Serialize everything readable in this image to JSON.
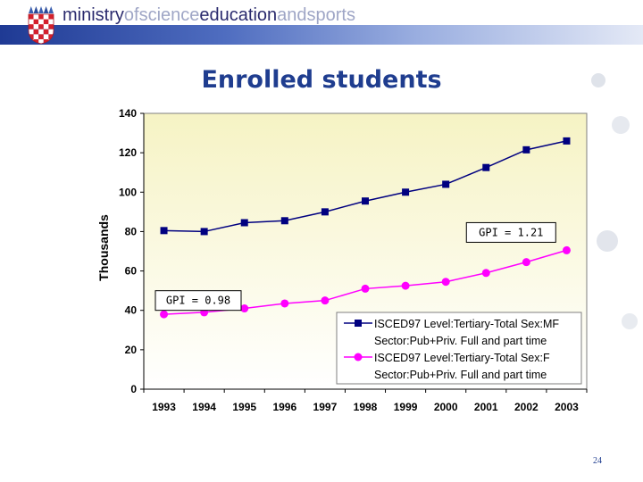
{
  "header": {
    "logo_parts": [
      "ministry",
      "ofscience",
      "education",
      "andsports"
    ]
  },
  "page": {
    "title": "Enrolled students",
    "page_number": "24"
  },
  "chart_data": {
    "type": "line",
    "title": "",
    "xlabel": "",
    "ylabel": "Thousands",
    "ylim": [
      0,
      140
    ],
    "yticks": [
      0,
      20,
      40,
      60,
      80,
      100,
      120,
      140
    ],
    "categories": [
      "1993",
      "1994",
      "1995",
      "1996",
      "1997",
      "1998",
      "1999",
      "2000",
      "2001",
      "2002",
      "2003"
    ],
    "grid": false,
    "legend_position": "bottom-right",
    "series": [
      {
        "name_line1": "ISCED97 Level:Tertiary-Total Sex:MF",
        "name_line2": "Sector:Pub+Priv. Full and part time",
        "color": "#000080",
        "marker": "square",
        "values": [
          80.5,
          80,
          84.5,
          85.5,
          90,
          95.5,
          100,
          104,
          112.5,
          121.5,
          126
        ]
      },
      {
        "name_line1": "ISCED97 Level:Tertiary-Total Sex:F",
        "name_line2": "Sector:Pub+Priv. Full and part time",
        "color": "#ff00ff",
        "marker": "circle",
        "values": [
          38,
          39,
          41,
          43.5,
          45,
          51,
          52.5,
          54.5,
          59,
          64.5,
          70.5
        ]
      }
    ],
    "annotations": [
      {
        "text": "GPI = 1.21"
      },
      {
        "text": "GPI = 0.98"
      }
    ]
  }
}
